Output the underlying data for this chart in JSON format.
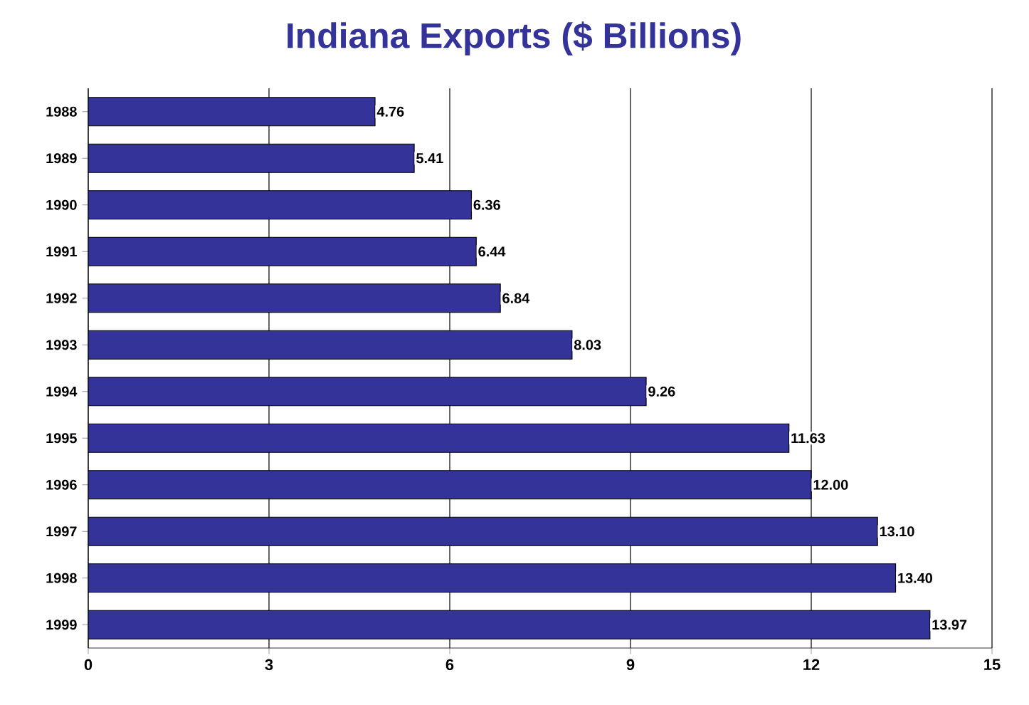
{
  "chart_data": {
    "type": "bar",
    "orientation": "horizontal",
    "title": "Indiana Exports ($ Billions)",
    "categories": [
      "1988",
      "1989",
      "1990",
      "1991",
      "1992",
      "1993",
      "1994",
      "1995",
      "1996",
      "1997",
      "1998",
      "1999"
    ],
    "values": [
      4.76,
      5.41,
      6.36,
      6.44,
      6.84,
      8.03,
      9.26,
      11.63,
      12.0,
      13.1,
      13.4,
      13.97
    ],
    "value_labels": [
      "4.76",
      "5.41",
      "6.36",
      "6.44",
      "6.84",
      "8.03",
      "9.26",
      "11.63",
      "12.00",
      "13.10",
      "13.40",
      "13.97"
    ],
    "color": "#333399",
    "xlim": [
      0,
      15
    ],
    "xticks": [
      0,
      3,
      6,
      9,
      12,
      15
    ],
    "grid": "x"
  }
}
